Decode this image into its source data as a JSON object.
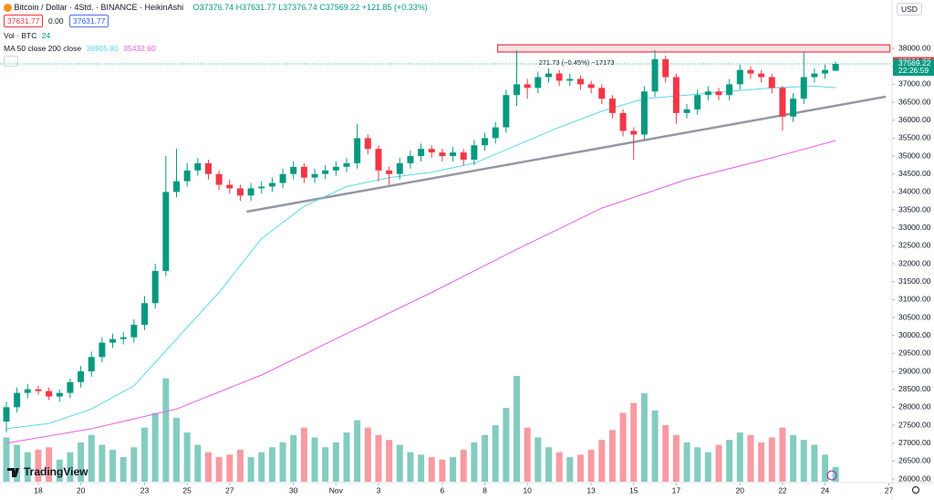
{
  "header": {
    "symbol": "Bitcoin / Dollar · 4Std. · BINANCE · HeikinAshi",
    "ohlc": "O37376.74 H37631.77 L37376.74 C37569.22 +121.85 (+0.33%)",
    "buttons": [
      "37631.77",
      "0.00",
      "37631.77"
    ],
    "volume_legend": "Vol · BTC",
    "volume_value": "24",
    "ma_legend": "MA 50 close 200 close",
    "ma50_value": "36905.80",
    "ma200_value": "35432.60",
    "currency": "USD",
    "brand": "TradingView"
  },
  "chart_data": {
    "type": "candlestick",
    "open": [
      27600,
      28000,
      28400,
      28500,
      28450,
      28300,
      28400,
      28700,
      29000,
      29400,
      29800,
      29900,
      29950,
      30300,
      30900,
      31800,
      34000,
      34300,
      34600,
      34800,
      34500,
      34200,
      34100,
      33900,
      34100,
      34150,
      34250,
      34500,
      34700,
      34400,
      34500,
      34600,
      34700,
      34800,
      35500,
      35200,
      34600,
      34500,
      34800,
      35000,
      35200,
      35100,
      35000,
      35100,
      34900,
      35300,
      35500,
      35800,
      36700,
      37000,
      36900,
      37200,
      37300,
      37100,
      37150,
      37000,
      36900,
      36600,
      36200,
      35700,
      35600,
      36800,
      37700,
      37200,
      36200,
      36300,
      36700,
      36800,
      36700,
      37000,
      37400,
      37300,
      37200,
      36900,
      36100,
      36600,
      37200,
      37300,
      37376.74
    ],
    "high": [
      28150,
      28550,
      28650,
      28600,
      28550,
      28500,
      28800,
      29150,
      29550,
      29950,
      30050,
      30100,
      30450,
      31100,
      32000,
      35000,
      35200,
      34800,
      34950,
      34900,
      34600,
      34350,
      34200,
      34250,
      34300,
      34400,
      34650,
      34850,
      34800,
      34650,
      34750,
      34850,
      34950,
      35900,
      35600,
      35300,
      34700,
      34950,
      35150,
      35350,
      35300,
      35200,
      35250,
      35200,
      35450,
      35650,
      35950,
      36850,
      37950,
      37150,
      37350,
      37450,
      37400,
      37300,
      37250,
      37100,
      37000,
      36700,
      36300,
      35800,
      36950,
      37950,
      37800,
      37300,
      36450,
      36850,
      36950,
      36900,
      37150,
      37550,
      37500,
      37400,
      37300,
      36950,
      36750,
      37900,
      37450,
      37550,
      37631.77
    ],
    "low": [
      27300,
      27850,
      28250,
      28350,
      28200,
      28150,
      28250,
      28550,
      28850,
      29250,
      29650,
      29750,
      29800,
      30150,
      30750,
      31650,
      33850,
      34150,
      34450,
      34350,
      34050,
      33950,
      33750,
      33750,
      33950,
      34000,
      34100,
      34350,
      34250,
      34250,
      34350,
      34450,
      34550,
      34650,
      35050,
      34300,
      34200,
      34350,
      34650,
      34850,
      34950,
      34850,
      34850,
      34750,
      34750,
      35150,
      35350,
      35650,
      36400,
      36600,
      36750,
      37050,
      36950,
      36950,
      36850,
      36750,
      36450,
      36050,
      35550,
      34900,
      35450,
      36650,
      37050,
      35900,
      36050,
      36150,
      36550,
      36550,
      36550,
      36850,
      37150,
      37050,
      36750,
      35700,
      35950,
      36450,
      37050,
      37150,
      37376.74
    ],
    "close": [
      28000,
      28400,
      28500,
      28450,
      28300,
      28400,
      28700,
      29000,
      29400,
      29800,
      29900,
      29950,
      30300,
      30900,
      31800,
      34000,
      34300,
      34600,
      34800,
      34500,
      34200,
      34100,
      33900,
      34100,
      34150,
      34250,
      34500,
      34700,
      34400,
      34500,
      34600,
      34700,
      34800,
      35500,
      35200,
      34600,
      34500,
      34800,
      35000,
      35200,
      35100,
      35000,
      35100,
      34900,
      35300,
      35500,
      35800,
      36700,
      37000,
      36900,
      37200,
      37300,
      37100,
      37150,
      37000,
      36900,
      36600,
      36200,
      35700,
      35600,
      36800,
      37700,
      37200,
      36200,
      36300,
      36700,
      36800,
      36700,
      37000,
      37400,
      37300,
      37200,
      36900,
      36100,
      36600,
      37200,
      37300,
      37400,
      37569.22
    ],
    "volume": [
      1800,
      1500,
      1200,
      1300,
      1400,
      900,
      1200,
      1600,
      1900,
      1500,
      1300,
      1000,
      1400,
      2200,
      2800,
      4200,
      2600,
      2000,
      1500,
      1200,
      1000,
      1100,
      1300,
      1000,
      1200,
      1400,
      1600,
      1900,
      2200,
      1800,
      1400,
      1600,
      2000,
      2500,
      2200,
      1900,
      1700,
      1500,
      1200,
      1100,
      1000,
      900,
      1000,
      1300,
      1600,
      1900,
      2300,
      3000,
      4300,
      2200,
      1800,
      1400,
      1200,
      1000,
      1100,
      1300,
      1700,
      2100,
      2800,
      3200,
      3600,
      2900,
      2300,
      1900,
      1600,
      1400,
      1200,
      1500,
      1700,
      2000,
      1900,
      1600,
      1800,
      2200,
      1900,
      1700,
      1500,
      1100,
      600
    ],
    "up_color": "#089981",
    "down_color": "#f23645",
    "xlim": [
      -0.6,
      83.3
    ],
    "xticks": [
      {
        "value": 3,
        "label": "18"
      },
      {
        "value": 7,
        "label": "20"
      },
      {
        "value": 13,
        "label": "23"
      },
      {
        "value": 17,
        "label": "25"
      },
      {
        "value": 21,
        "label": "27"
      },
      {
        "value": 27,
        "label": "30"
      },
      {
        "value": 31,
        "label": "Nov"
      },
      {
        "value": 35,
        "label": "3"
      },
      {
        "value": 41,
        "label": "6"
      },
      {
        "value": 45,
        "label": "8"
      },
      {
        "value": 49,
        "label": "10"
      },
      {
        "value": 55,
        "label": "13"
      },
      {
        "value": 59,
        "label": "15"
      },
      {
        "value": 63,
        "label": "17"
      },
      {
        "value": 69,
        "label": "20"
      },
      {
        "value": 73,
        "label": "22"
      },
      {
        "value": 77,
        "label": "24"
      },
      {
        "value": 83,
        "label": "27"
      }
    ],
    "ylim": [
      25924,
      39349
    ],
    "yticks": [
      {
        "value": 26000,
        "label": "26000.00"
      },
      {
        "value": 26500,
        "label": "26500.00"
      },
      {
        "value": 27000,
        "label": "27000.00"
      },
      {
        "value": 27500,
        "label": "27500.00"
      },
      {
        "value": 28000,
        "label": "28000.00"
      },
      {
        "value": 28500,
        "label": "28500.00"
      },
      {
        "value": 29000,
        "label": "29000.00"
      },
      {
        "value": 29500,
        "label": "29500.00"
      },
      {
        "value": 30000,
        "label": "30000.00"
      },
      {
        "value": 30500,
        "label": "30500.00"
      },
      {
        "value": 31000,
        "label": "31000.00"
      },
      {
        "value": 31500,
        "label": "31500.00"
      },
      {
        "value": 32000,
        "label": "32000.00"
      },
      {
        "value": 32500,
        "label": "32500.00"
      },
      {
        "value": 33000,
        "label": "33000.00"
      },
      {
        "value": 33500,
        "label": "33500.00"
      },
      {
        "value": 34000,
        "label": "34000.00"
      },
      {
        "value": 34500,
        "label": "34500.00"
      },
      {
        "value": 35000,
        "label": "35000.00"
      },
      {
        "value": 35500,
        "label": "35500.00"
      },
      {
        "value": 36000,
        "label": "36000.00"
      },
      {
        "value": 36500,
        "label": "36500.00"
      },
      {
        "value": 37000,
        "label": "37000.00"
      },
      {
        "value": 37500,
        "label": "37500.00"
      },
      {
        "value": 38000,
        "label": "38000.00"
      }
    ],
    "grid": false,
    "moving_averages": [
      {
        "color": "#5ad8ec",
        "x": [
          0,
          4,
          8,
          12,
          16,
          20,
          24,
          28,
          32,
          36,
          40,
          44,
          48,
          52,
          56,
          60,
          64,
          68,
          72,
          76,
          78
        ],
        "values": [
          27400,
          27550,
          27950,
          28600,
          29900,
          31200,
          32700,
          33600,
          34150,
          34400,
          34550,
          34800,
          35300,
          35800,
          36250,
          36600,
          36700,
          36800,
          36900,
          36950,
          36905.8
        ]
      },
      {
        "color": "#e85ee8",
        "x": [
          0,
          8,
          16,
          24,
          32,
          40,
          48,
          56,
          64,
          72,
          78
        ],
        "values": [
          27000,
          27400,
          27950,
          28900,
          30050,
          31200,
          32400,
          33550,
          34350,
          34950,
          35432.6
        ]
      }
    ],
    "trendline": {
      "color": "#9598a1",
      "x": [
        22.6,
        82.7
      ],
      "values": [
        33450,
        36654
      ]
    },
    "zone": {
      "color": "#f23645",
      "x": [
        46.2,
        83.1
      ],
      "values": [
        37900,
        38100
      ]
    },
    "measure_label": "271.73 (−0.45%) −17173",
    "price_labels": [
      {
        "value": 37631.77,
        "label": "37631.77",
        "color": "#f23645"
      },
      {
        "value": 37569.22,
        "label": "37569.22",
        "color": "#089981"
      }
    ],
    "countdown": "22:26:59"
  }
}
